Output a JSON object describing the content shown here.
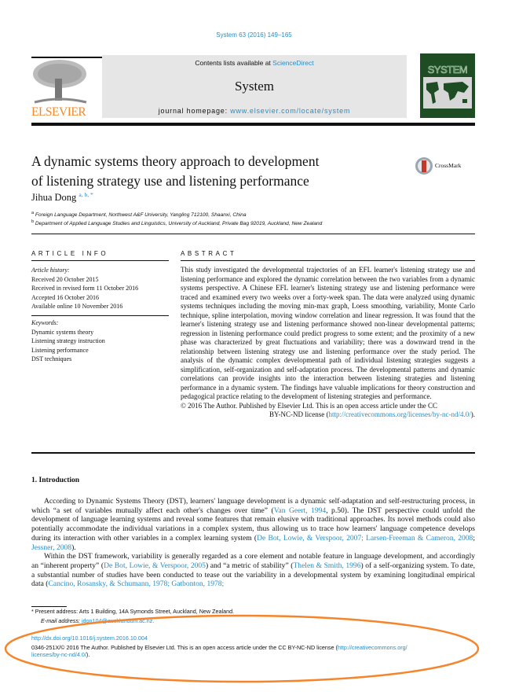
{
  "header": {
    "journal_ref": "System 63 (2016) 149–165",
    "contents_prefix": "Contents lists available at ",
    "contents_link": "ScienceDirect",
    "journal_name": "System",
    "homepage_prefix": "journal homepage: ",
    "homepage_link": "www.elsevier.com/locate/system",
    "publisher_logo": "ELSEVIER",
    "cover_title": "SYSTEM",
    "accent_color": "#2a8cc4",
    "publisher_color": "#f08a2c"
  },
  "article": {
    "title_line1": "A dynamic systems theory approach to development",
    "title_line2": "of listening strategy use and listening performance",
    "crossmark": "CrossMark",
    "author": "Jihua Dong",
    "author_marks": "a, b, *",
    "affiliations": [
      {
        "mark": "a",
        "text": "Foreign Language Department, Northwest A&F University, Yangling 712100, Shaanxi, China"
      },
      {
        "mark": "b",
        "text": "Department of Applied Language Studies and Linguistics, University of Auckland, Private Bag 92019, Auckland, New Zealand"
      }
    ]
  },
  "article_info": {
    "heading": "ARTICLE INFO",
    "history_label": "Article history:",
    "history": [
      "Received 20 October 2015",
      "Received in revised form 11 October 2016",
      "Accepted 16 October 2016",
      "Available online 10 November 2016"
    ],
    "keywords_label": "Keywords:",
    "keywords": [
      "Dynamic systems theory",
      "Listening strategy instruction",
      "Listening performance",
      "DST techniques"
    ]
  },
  "abstract": {
    "heading": "ABSTRACT",
    "text": "This study investigated the developmental trajectories of an EFL learner's listening strategy use and listening performance and explored the dynamic correlation between the two variables from a dynamic systems perspective. A Chinese EFL learner's listening strategy use and listening performance were traced and examined every two weeks over a forty-week span. The data were analyzed using dynamic systems techniques including the moving min-max graph, Loess smoothing, variability, Monte Carlo technique, spline interpolation, moving window correlation and linear regression. It was found that the learner's listening strategy use and listening performance showed non-linear developmental patterns; regression in listening performance could predict progress to some extent; and the proximity of a new phase was characterized by great fluctuations and variability; there was a downward trend in the relationship between listening strategy use and listening performance over the study period. The analysis of the dynamic complex developmental path of individual listening strategies suggests a simplification, self-organization and self-adaptation process. The developmental patterns and dynamic correlations can provide insights into the interaction between listening strategies and listening performance in a dynamic system. The findings have valuable implications for theory construction and pedagogical practice relating to the development of listening strategies and performance.",
    "copyright": "© 2016 The Author. Published by Elsevier Ltd. This is an open access article under the CC",
    "license_prefix": "BY-NC-ND license (",
    "license_link": "http://creativecommons.org/licenses/by-nc-nd/4.0/",
    "license_suffix": ")."
  },
  "introduction": {
    "heading": "1. Introduction",
    "p1": [
      {
        "t": "According to Dynamic Systems Theory (DST), learners' language development is a dynamic self-adaptation and self-restructuring process, in which “a set of variables mutually affect each other's changes over time” ("
      },
      {
        "t": "Van Geert, 1994",
        "link": true
      },
      {
        "t": ", p.50). The DST perspective could unfold the development of language learning systems and reveal some features that remain elusive with traditional approaches. Its novel methods could also potentially accommodate the individual variations in a complex system, thus allowing us to trace how learners' language competence develops during its interaction with other variables in a complex learning system ("
      },
      {
        "t": "De Bot, Lowie, & Verspoor, 2007; Larsen-Freeman & Cameron, 2008",
        "link": true
      },
      {
        "t": "; "
      },
      {
        "t": "Jessner, 2008",
        "link": true
      },
      {
        "t": ")."
      }
    ],
    "p2": [
      {
        "t": "Within the DST framework, variability is generally regarded as a core element and notable feature in language development, and accordingly an “inherent property” ("
      },
      {
        "t": "De Bot, Lowie, & Verspoor, 2005",
        "link": true
      },
      {
        "t": ") and “a metric of stability” ("
      },
      {
        "t": "Thelen & Smith, 1996",
        "link": true
      },
      {
        "t": ") of a self-organizing system. To date, a substantial number of studies have been conducted to tease out the variability in a developmental system by examining longitudinal empirical data ("
      },
      {
        "t": "Cancino, Rosansky, & Schumann, 1978; Gatbonton, 1978;",
        "link": true
      }
    ]
  },
  "footnotes": {
    "present_address": "* Present address: Arts 1 Building, 14A Symonds Street, Auckland, New Zealand.",
    "email_label": "E-mail address: ",
    "email": "jdon104@aucklanduni.ac.nz.",
    "doi": "http://dx.doi.org/10.1016/j.system.2016.10.004",
    "license_text": "0346-251X/© 2016 The Author. Published by Elsevier Ltd. This is an open access article under the CC BY-NC-ND license (",
    "license_link1": "http://creativecommons.org/",
    "license_link2": "licenses/by-nc-nd/4.0/",
    "license_suffix": ")."
  },
  "annotation": {
    "color": "#f5842a"
  }
}
